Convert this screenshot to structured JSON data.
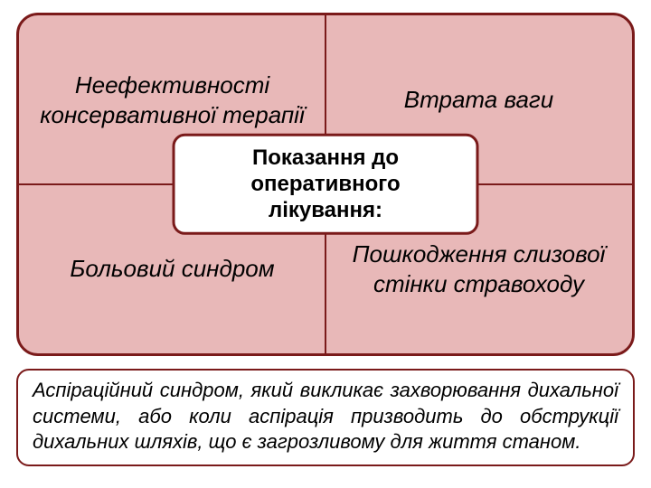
{
  "diagram": {
    "type": "infographic",
    "top_panel": {
      "background_color": "#e8b8b8",
      "border_color": "#7a1a1a",
      "border_width": 3,
      "border_radius": 24,
      "divider_color": "#7a1a1a",
      "quadrants": {
        "top_left": "Неефективності консервативної терапії",
        "top_right": "Втрата ваги",
        "bottom_left": "Больовий синдром",
        "bottom_right": "Пошкодження слизової стінки стравоходу"
      },
      "quadrant_font": {
        "style": "italic",
        "size_pt": 20,
        "color": "#000000"
      },
      "center_label": {
        "text": "Показання до оперативного лікування:",
        "background_color": "#ffffff",
        "border_color": "#7a1a1a",
        "border_radius": 14,
        "font_weight": "bold",
        "font_size_pt": 18,
        "color": "#000000"
      }
    },
    "bottom_panel": {
      "text": "Аспіраційний синдром, який викликає захворювання дихальної системи, або коли аспірація призводить до обструкції дихальних шляхів, що є загрозливому для життя станом.",
      "background_color": "#ffffff",
      "border_color": "#7a1a1a",
      "border_radius": 14,
      "font": {
        "style": "italic",
        "size_pt": 17,
        "color": "#000000",
        "align": "justify"
      }
    }
  }
}
